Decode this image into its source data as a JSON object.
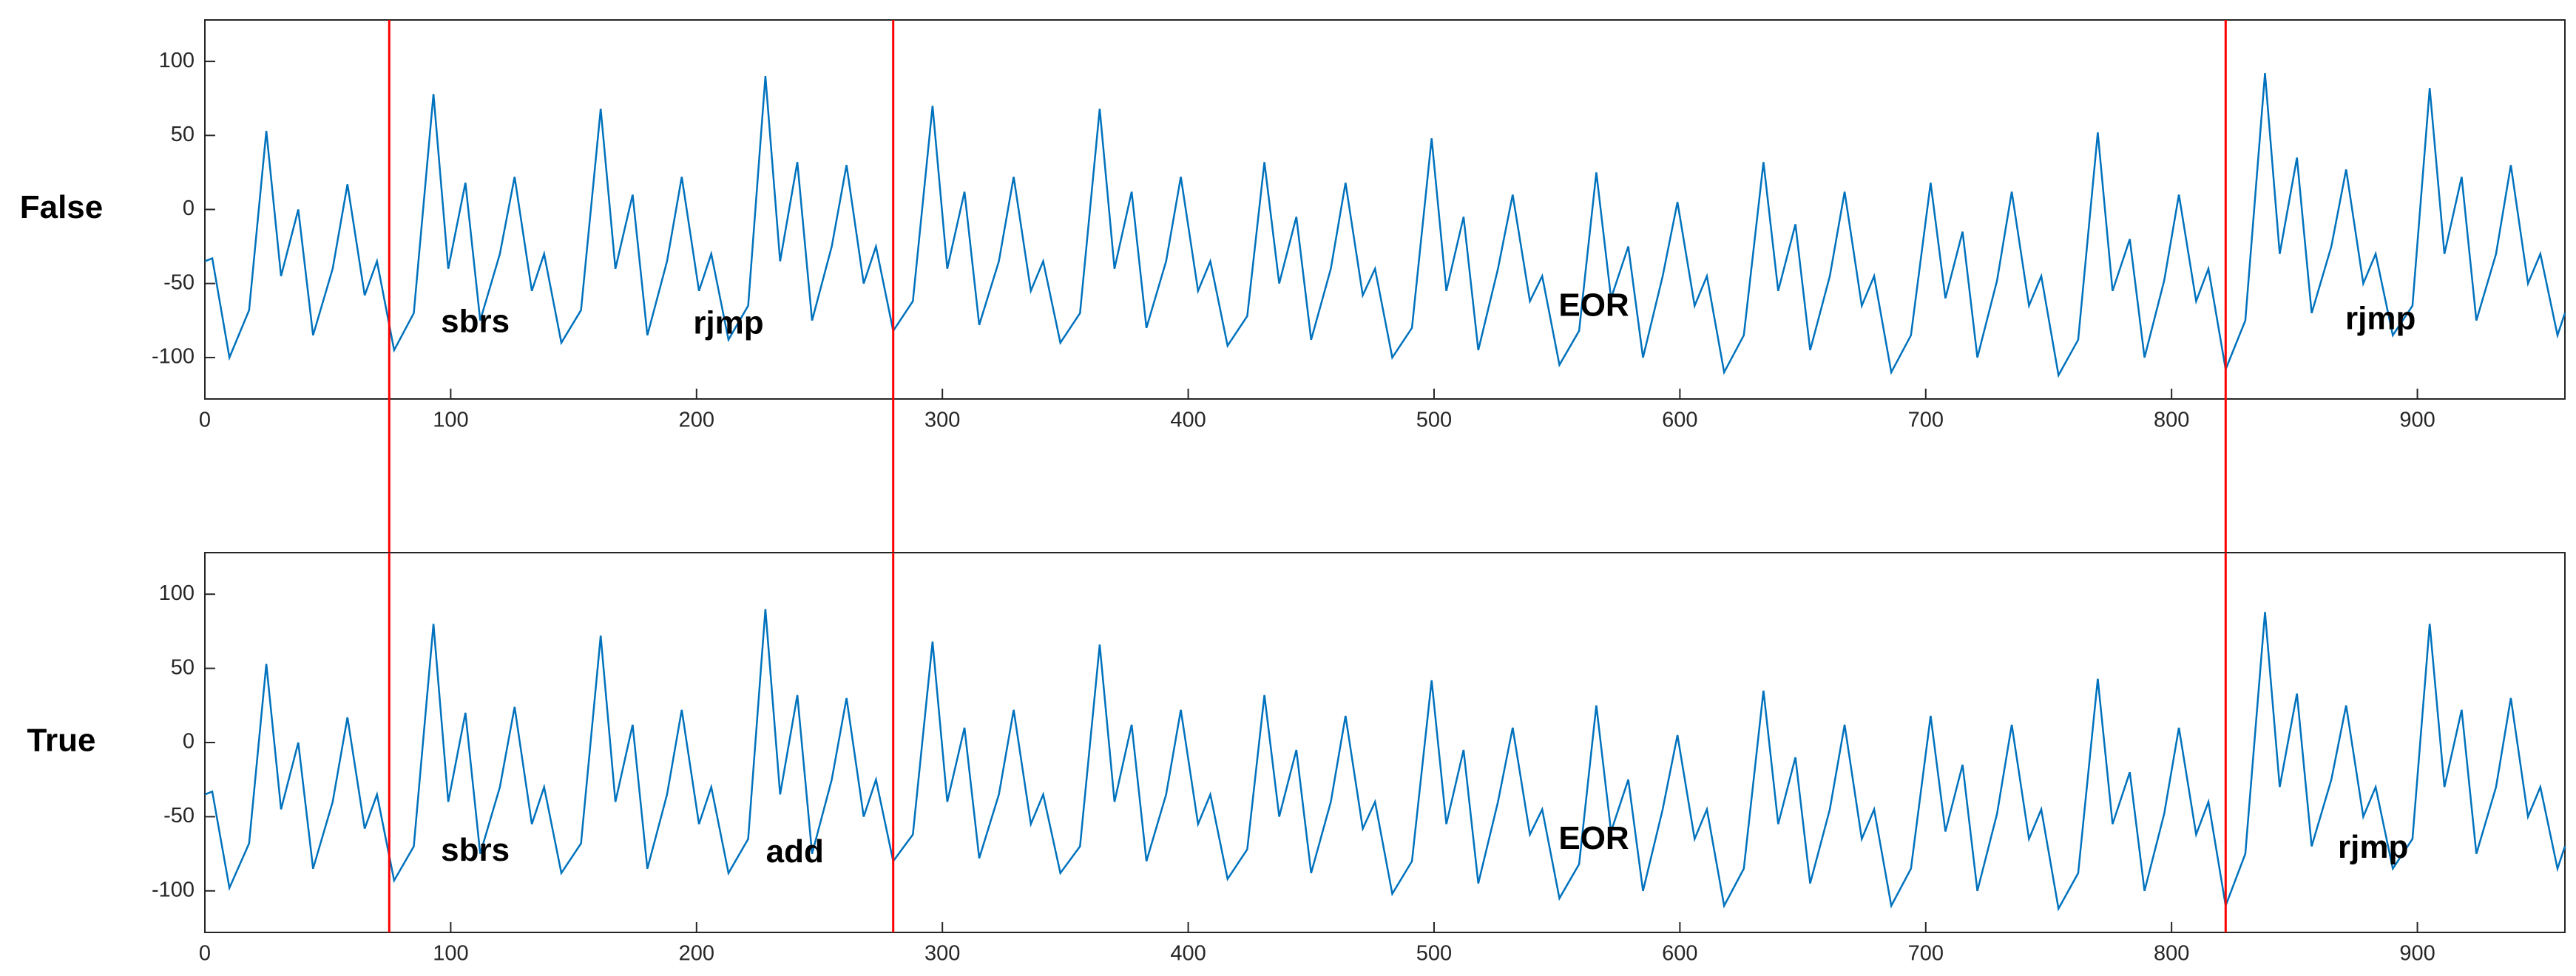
{
  "chart_data": [
    {
      "type": "line",
      "ylabel": "False",
      "x": [
        0,
        3,
        10,
        18,
        25,
        31,
        38,
        44,
        52,
        58,
        65,
        70,
        77,
        85,
        93,
        99,
        106,
        112,
        120,
        126,
        133,
        138,
        145,
        153,
        161,
        167,
        174,
        180,
        188,
        194,
        201,
        206,
        213,
        221,
        228,
        234,
        241,
        247,
        255,
        261,
        268,
        273,
        280,
        288,
        296,
        302,
        309,
        315,
        323,
        329,
        336,
        341,
        348,
        356,
        364,
        370,
        377,
        383,
        391,
        397,
        404,
        409,
        416,
        424,
        431,
        437,
        444,
        450,
        458,
        464,
        471,
        476,
        483,
        491,
        499,
        505,
        512,
        518,
        526,
        532,
        539,
        544,
        551,
        559,
        566,
        572,
        579,
        585,
        593,
        599,
        606,
        611,
        618,
        626,
        634,
        640,
        647,
        653,
        661,
        667,
        674,
        679,
        686,
        694,
        702,
        708,
        715,
        721,
        729,
        735,
        742,
        747,
        754,
        762,
        770,
        776,
        783,
        789,
        797,
        803,
        810,
        815,
        822,
        830,
        838,
        844,
        851,
        857,
        865,
        871,
        878,
        883,
        890,
        898,
        905,
        911,
        918,
        924,
        932,
        938,
        945,
        950,
        957,
        960
      ],
      "values": [
        -35,
        -33,
        -100,
        -68,
        53,
        -45,
        0,
        -85,
        -40,
        17,
        -58,
        -35,
        -95,
        -70,
        78,
        -40,
        18,
        -75,
        -30,
        22,
        -55,
        -30,
        -90,
        -68,
        68,
        -40,
        10,
        -85,
        -35,
        22,
        -55,
        -30,
        -88,
        -65,
        90,
        -35,
        32,
        -75,
        -25,
        30,
        -50,
        -25,
        -82,
        -62,
        70,
        -40,
        12,
        -78,
        -35,
        22,
        -55,
        -35,
        -90,
        -70,
        68,
        -40,
        12,
        -80,
        -35,
        22,
        -55,
        -35,
        -92,
        -72,
        32,
        -50,
        -5,
        -88,
        -40,
        18,
        -58,
        -40,
        -100,
        -80,
        48,
        -55,
        -5,
        -95,
        -40,
        10,
        -62,
        -45,
        -105,
        -82,
        25,
        -60,
        -25,
        -100,
        -45,
        5,
        -65,
        -45,
        -110,
        -85,
        32,
        -55,
        -10,
        -95,
        -45,
        12,
        -65,
        -45,
        -110,
        -85,
        18,
        -60,
        -15,
        -100,
        -48,
        12,
        -65,
        -45,
        -112,
        -88,
        52,
        -55,
        -20,
        -100,
        -48,
        10,
        -62,
        -40,
        -108,
        -75,
        92,
        -30,
        35,
        -70,
        -25,
        27,
        -50,
        -30,
        -85,
        -65,
        82,
        -30,
        22,
        -75,
        -30,
        30,
        -50,
        -30,
        -85,
        -70
      ],
      "color": "#0072bd",
      "xlim": [
        0,
        960
      ],
      "ylim": [
        -128,
        128
      ],
      "xticks": [
        0,
        100,
        200,
        300,
        400,
        500,
        600,
        700,
        800,
        900
      ],
      "yticks": [
        -100,
        -50,
        0,
        50,
        100
      ],
      "vlines": [
        75,
        280,
        822
      ],
      "vline_color": "#ff0000",
      "annotations": [
        {
          "text": "sbrs",
          "x": 110,
          "y": -77
        },
        {
          "text": "rjmp",
          "x": 213,
          "y": -78
        },
        {
          "text": "EOR",
          "x": 565,
          "y": -66
        },
        {
          "text": "rjmp",
          "x": 885,
          "y": -75
        }
      ]
    },
    {
      "type": "line",
      "ylabel": "True",
      "x": [
        0,
        3,
        10,
        18,
        25,
        31,
        38,
        44,
        52,
        58,
        65,
        70,
        77,
        85,
        93,
        99,
        106,
        112,
        120,
        126,
        133,
        138,
        145,
        153,
        161,
        167,
        174,
        180,
        188,
        194,
        201,
        206,
        213,
        221,
        228,
        234,
        241,
        247,
        255,
        261,
        268,
        273,
        280,
        288,
        296,
        302,
        309,
        315,
        323,
        329,
        336,
        341,
        348,
        356,
        364,
        370,
        377,
        383,
        391,
        397,
        404,
        409,
        416,
        424,
        431,
        437,
        444,
        450,
        458,
        464,
        471,
        476,
        483,
        491,
        499,
        505,
        512,
        518,
        526,
        532,
        539,
        544,
        551,
        559,
        566,
        572,
        579,
        585,
        593,
        599,
        606,
        611,
        618,
        626,
        634,
        640,
        647,
        653,
        661,
        667,
        674,
        679,
        686,
        694,
        702,
        708,
        715,
        721,
        729,
        735,
        742,
        747,
        754,
        762,
        770,
        776,
        783,
        789,
        797,
        803,
        810,
        815,
        822,
        830,
        838,
        844,
        851,
        857,
        865,
        871,
        878,
        883,
        890,
        898,
        905,
        911,
        918,
        924,
        932,
        938,
        945,
        950,
        957,
        960
      ],
      "values": [
        -35,
        -33,
        -98,
        -68,
        53,
        -45,
        0,
        -85,
        -40,
        17,
        -58,
        -35,
        -93,
        -70,
        80,
        -40,
        20,
        -75,
        -30,
        24,
        -55,
        -30,
        -88,
        -68,
        72,
        -40,
        12,
        -85,
        -35,
        22,
        -55,
        -30,
        -88,
        -65,
        90,
        -35,
        32,
        -75,
        -25,
        30,
        -50,
        -25,
        -80,
        -62,
        68,
        -40,
        10,
        -78,
        -35,
        22,
        -55,
        -35,
        -88,
        -70,
        66,
        -40,
        12,
        -80,
        -35,
        22,
        -55,
        -35,
        -92,
        -72,
        32,
        -50,
        -5,
        -88,
        -40,
        18,
        -58,
        -40,
        -102,
        -80,
        42,
        -55,
        -5,
        -95,
        -40,
        10,
        -62,
        -45,
        -105,
        -82,
        25,
        -60,
        -25,
        -100,
        -45,
        5,
        -65,
        -45,
        -110,
        -85,
        35,
        -55,
        -10,
        -95,
        -45,
        12,
        -65,
        -45,
        -110,
        -85,
        18,
        -60,
        -15,
        -100,
        -48,
        12,
        -65,
        -45,
        -112,
        -88,
        43,
        -55,
        -20,
        -100,
        -48,
        10,
        -62,
        -40,
        -110,
        -75,
        88,
        -30,
        33,
        -70,
        -25,
        25,
        -50,
        -30,
        -85,
        -65,
        80,
        -30,
        22,
        -75,
        -30,
        30,
        -50,
        -30,
        -85,
        -70
      ],
      "color": "#0072bd",
      "xlim": [
        0,
        960
      ],
      "ylim": [
        -128,
        128
      ],
      "xticks": [
        0,
        100,
        200,
        300,
        400,
        500,
        600,
        700,
        800,
        900
      ],
      "yticks": [
        -100,
        -50,
        0,
        50,
        100
      ],
      "vlines": [
        75,
        280,
        822
      ],
      "vline_color": "#ff0000",
      "annotations": [
        {
          "text": "sbrs",
          "x": 110,
          "y": -74
        },
        {
          "text": "add",
          "x": 240,
          "y": -75
        },
        {
          "text": "EOR",
          "x": 565,
          "y": -66
        },
        {
          "text": "rjmp",
          "x": 882,
          "y": -72
        }
      ]
    }
  ]
}
